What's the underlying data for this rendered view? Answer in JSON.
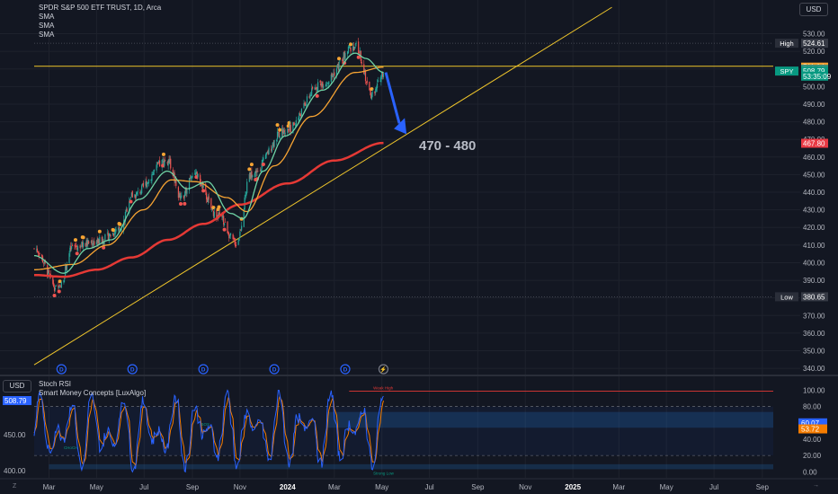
{
  "legend": {
    "title": "SPDR S&P 500 ETF TRUST, 1D, Arca",
    "lines": [
      "SMA",
      "SMA",
      "SMA"
    ]
  },
  "currency_button": "USD",
  "indicator_legend": {
    "currency": "USD",
    "lines": [
      "Stoch RSI",
      "Smart Money Concepts [LuxAlgo]"
    ]
  },
  "annotation": "470 - 480",
  "corner_left": "Z",
  "corner_right": "→",
  "colors": {
    "background": "#131722",
    "grid": "#1e222d",
    "candle_up": "#26a69a",
    "candle_down": "#ef5350",
    "sma_fast": "#6fd3a5",
    "sma_mid": "#f7a433",
    "sma_slow": "#e53935",
    "trendline": "#f0c62b",
    "arrow": "#2962ff",
    "stoch_k": "#2962ff",
    "stoch_d": "#f57c00",
    "price_label": "#089981",
    "high_label": "#f59f32",
    "red_label": "#e83944"
  },
  "chart_data": {
    "type": "line",
    "symbol": "SPY",
    "y_ticks": [
      340,
      350,
      360,
      370,
      380,
      390,
      400,
      410,
      420,
      430,
      440,
      450,
      460,
      470,
      480,
      490,
      500,
      510,
      520,
      530
    ],
    "y_tick_labels": [
      "340.00",
      "350.00",
      "360.00",
      "370.00",
      "380.00",
      "390.00",
      "400.00",
      "410.00",
      "420.00",
      "430.00",
      "440.00",
      "450.00",
      "460.00",
      "470.00",
      "480.00",
      "490.00",
      "500.00",
      "510.00",
      "520.00",
      "530.00"
    ],
    "ylim": [
      337,
      542
    ],
    "x_tick_labels": [
      "Mar",
      "May",
      "Jul",
      "Sep",
      "Nov",
      "2024",
      "Mar",
      "May",
      "Jul",
      "Sep",
      "Nov",
      "2025",
      "Mar",
      "May",
      "Jul",
      "Sep"
    ],
    "x_tick_dates": [
      "2023-03-01",
      "2023-05-01",
      "2023-07-01",
      "2023-09-01",
      "2023-11-01",
      "2024-01-01",
      "2024-03-01",
      "2024-05-01",
      "2024-07-01",
      "2024-09-01",
      "2024-11-01",
      "2025-01-01",
      "2025-03-01",
      "2025-05-01",
      "2025-07-01",
      "2025-09-01"
    ],
    "xlim": [
      "2023-02-10",
      "2025-09-15"
    ],
    "price_anchors": [
      [
        "2023-02-10",
        408
      ],
      [
        "2023-03-13",
        385
      ],
      [
        "2023-04-01",
        409
      ],
      [
        "2023-05-01",
        412
      ],
      [
        "2023-05-31",
        418
      ],
      [
        "2023-06-15",
        438
      ],
      [
        "2023-07-31",
        458
      ],
      [
        "2023-08-18",
        436
      ],
      [
        "2023-09-01",
        451
      ],
      [
        "2023-10-05",
        426
      ],
      [
        "2023-10-27",
        411
      ],
      [
        "2023-11-15",
        450
      ],
      [
        "2023-12-29",
        475
      ],
      [
        "2024-02-15",
        502
      ],
      [
        "2024-03-28",
        523
      ],
      [
        "2024-04-19",
        495
      ],
      [
        "2024-05-03",
        508
      ]
    ],
    "sma_fast_anchors": [
      [
        "2023-02-10",
        404
      ],
      [
        "2023-03-20",
        394
      ],
      [
        "2023-04-20",
        408
      ],
      [
        "2023-05-20",
        413
      ],
      [
        "2023-06-25",
        436
      ],
      [
        "2023-07-31",
        452
      ],
      [
        "2023-08-25",
        442
      ],
      [
        "2023-09-20",
        446
      ],
      [
        "2023-10-20",
        428
      ],
      [
        "2023-11-05",
        425
      ],
      [
        "2023-12-01",
        452
      ],
      [
        "2023-12-29",
        472
      ],
      [
        "2024-02-15",
        498
      ],
      [
        "2024-03-28",
        519
      ],
      [
        "2024-04-10",
        516
      ],
      [
        "2024-05-03",
        508
      ]
    ],
    "sma_mid_anchors": [
      [
        "2023-02-10",
        396
      ],
      [
        "2023-04-01",
        399
      ],
      [
        "2023-05-15",
        410
      ],
      [
        "2023-06-30",
        430
      ],
      [
        "2023-08-05",
        447
      ],
      [
        "2023-09-05",
        446
      ],
      [
        "2023-10-15",
        437
      ],
      [
        "2023-11-10",
        429
      ],
      [
        "2023-12-15",
        455
      ],
      [
        "2024-02-01",
        483
      ],
      [
        "2024-03-28",
        508
      ],
      [
        "2024-05-03",
        511
      ]
    ],
    "sma_slow_anchors": [
      [
        "2023-02-10",
        393
      ],
      [
        "2023-03-20",
        392
      ],
      [
        "2023-05-01",
        396
      ],
      [
        "2023-06-15",
        403
      ],
      [
        "2023-08-01",
        413
      ],
      [
        "2023-09-15",
        422
      ],
      [
        "2023-11-01",
        433
      ],
      [
        "2024-01-01",
        445
      ],
      [
        "2024-03-01",
        458
      ],
      [
        "2024-05-03",
        468
      ]
    ],
    "trendline": [
      [
        "2023-02-10",
        342
      ],
      [
        "2025-02-20",
        545
      ]
    ],
    "horizontal_line": 511.5,
    "high_level": 524.61,
    "low_level": 380.65,
    "dividend_markers": [
      "2023-03-17",
      "2023-06-16",
      "2023-09-15",
      "2023-12-15",
      "2024-03-15",
      "2024-05-03"
    ],
    "price_labels": [
      {
        "text": "High",
        "value": "524.61",
        "y": 524.61,
        "color": "#363a45"
      },
      {
        "text": "",
        "value": "511.04",
        "y": 511.04,
        "color": "#f59f32"
      },
      {
        "text": "",
        "value": "509.86",
        "y": 509.86,
        "color": "#3a8f7a"
      },
      {
        "text": "SPY",
        "value": "508.79",
        "y": 508.79,
        "color": "#089981"
      },
      {
        "text": "",
        "value": "53:35:09",
        "y": 505.9,
        "color": "#089981"
      },
      {
        "text": "",
        "value": "467.80",
        "y": 467.8,
        "color": "#e83944"
      },
      {
        "text": "Low",
        "value": "380.65",
        "y": 380.65,
        "color": "#363a45"
      }
    ]
  },
  "stoch_data": {
    "left_ticks": [
      "400.00",
      "450.00",
      "500.00"
    ],
    "left_tick_values": [
      400,
      450,
      500
    ],
    "left_ylim": [
      395,
      518
    ],
    "left_label": "508.79",
    "right_ticks": [
      "0.00",
      "20.00",
      "40.00",
      "60.00",
      "80.00",
      "100.00"
    ],
    "right_tick_values": [
      0,
      20,
      40,
      60,
      80,
      100
    ],
    "right_ylim": [
      -3,
      105
    ],
    "k_label": "60.07",
    "k_value": 60.07,
    "d_label": "53.72",
    "d_value": 53.72,
    "smc_texts": [
      "Weak High",
      "Strong Low",
      "BOS",
      "CHoCH"
    ]
  }
}
